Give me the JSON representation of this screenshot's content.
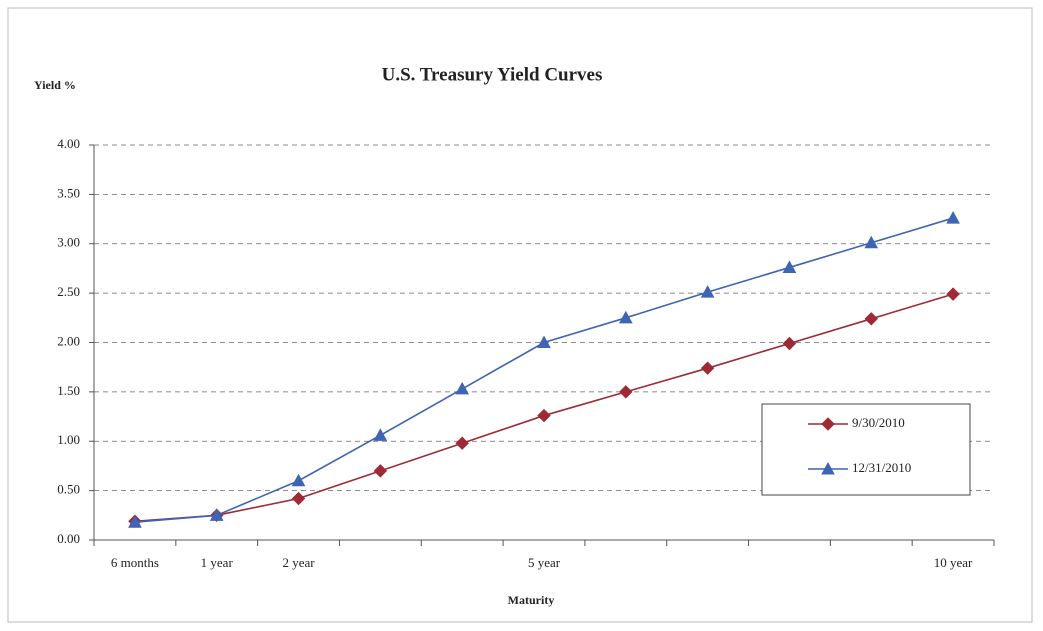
{
  "chart_data": {
    "type": "line",
    "title": "U.S. Treasury Yield Curves",
    "y_label": "Yield %",
    "x_label": "Maturity",
    "categories": [
      "6 months",
      "1 year",
      "2 year",
      null,
      null,
      "5 year",
      null,
      null,
      null,
      null,
      "10 year"
    ],
    "series": [
      {
        "name": "9/30/2010",
        "color": "#9e2a35",
        "marker": "diamond",
        "values": [
          0.19,
          0.25,
          0.42,
          0.7,
          0.98,
          1.26,
          1.5,
          1.74,
          1.99,
          2.24,
          2.49
        ]
      },
      {
        "name": "12/31/2010",
        "color": "#3f64b4",
        "marker": "triangle",
        "values": [
          0.18,
          0.25,
          0.6,
          1.06,
          1.53,
          2.0,
          2.25,
          2.51,
          2.76,
          3.01,
          3.26
        ]
      }
    ],
    "ylim": [
      0,
      4
    ],
    "yticks": [
      {
        "value": 0,
        "label": "0.00"
      },
      {
        "value": 0.5,
        "label": "0.50"
      },
      {
        "value": 1,
        "label": "1.00"
      },
      {
        "value": 1.5,
        "label": "1.50"
      },
      {
        "value": 2,
        "label": "2.00"
      },
      {
        "value": 2.5,
        "label": "2.50"
      },
      {
        "value": 3,
        "label": "3.00"
      },
      {
        "value": 3.5,
        "label": "3.50"
      },
      {
        "value": 4,
        "label": "4.00"
      }
    ],
    "grid": true,
    "legend": "right"
  }
}
